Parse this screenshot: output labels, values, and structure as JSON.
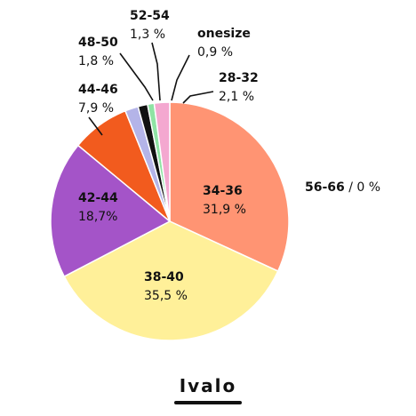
{
  "title": "Ivalo",
  "chart_data": {
    "type": "pie",
    "slices": [
      {
        "label": "34-36",
        "value": 31.9,
        "display": "31,9 %",
        "color": "#ff9473"
      },
      {
        "label": "38-40",
        "value": 35.5,
        "display": "35,5 %",
        "color": "#fff099"
      },
      {
        "label": "42-44",
        "value": 18.7,
        "display": "18,7%",
        "color": "#a454c8"
      },
      {
        "label": "44-46",
        "value": 7.9,
        "display": "7,9 %",
        "color": "#f25b1e"
      },
      {
        "label": "48-50",
        "value": 1.8,
        "display": "1,8 %",
        "color": "#b4b4e8"
      },
      {
        "label": "52-54",
        "value": 1.3,
        "display": "1,3 %",
        "color": "#111111"
      },
      {
        "label": "onesize",
        "value": 0.9,
        "display": "0,9 %",
        "color": "#8fe3a4"
      },
      {
        "label": "28-32",
        "value": 2.1,
        "display": "2,1 %",
        "color": "#f4a8d0"
      }
    ],
    "zero_slice": {
      "label": "56-66",
      "display": "0 %"
    }
  }
}
